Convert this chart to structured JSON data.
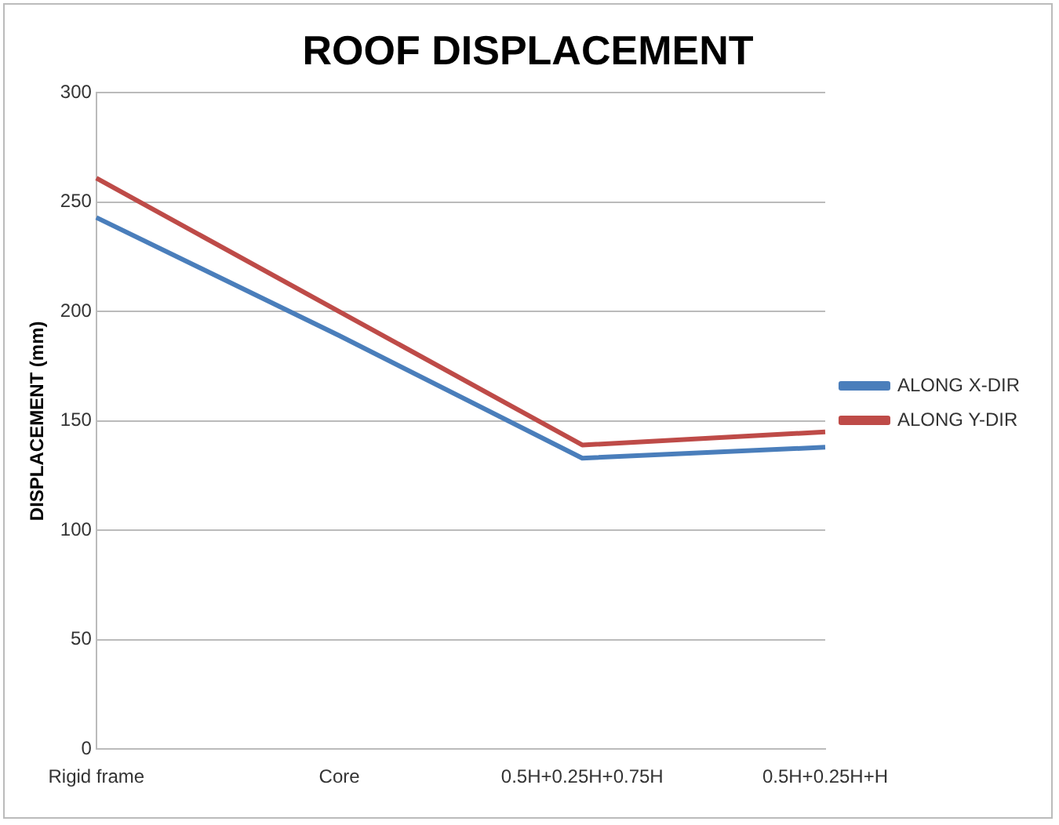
{
  "chart_data": {
    "type": "line",
    "title": "ROOF DISPLACEMENT",
    "ylabel": "DISPLACEMENT (mm)",
    "categories": [
      "Rigid frame",
      "Core",
      "0.5H+0.25H+0.75H",
      "0.5H+0.25H+H"
    ],
    "series": [
      {
        "name": "ALONG X-DIR",
        "color": "#4a7ebb",
        "values": [
          243,
          189,
          133,
          138
        ]
      },
      {
        "name": "ALONG Y-DIR",
        "color": "#be4b48",
        "values": [
          261,
          200,
          139,
          145
        ]
      }
    ],
    "ylim": [
      0,
      300
    ],
    "yticks": [
      0,
      50,
      100,
      150,
      200,
      250,
      300
    ],
    "grid": "y",
    "legend": "right",
    "marker": "none"
  }
}
